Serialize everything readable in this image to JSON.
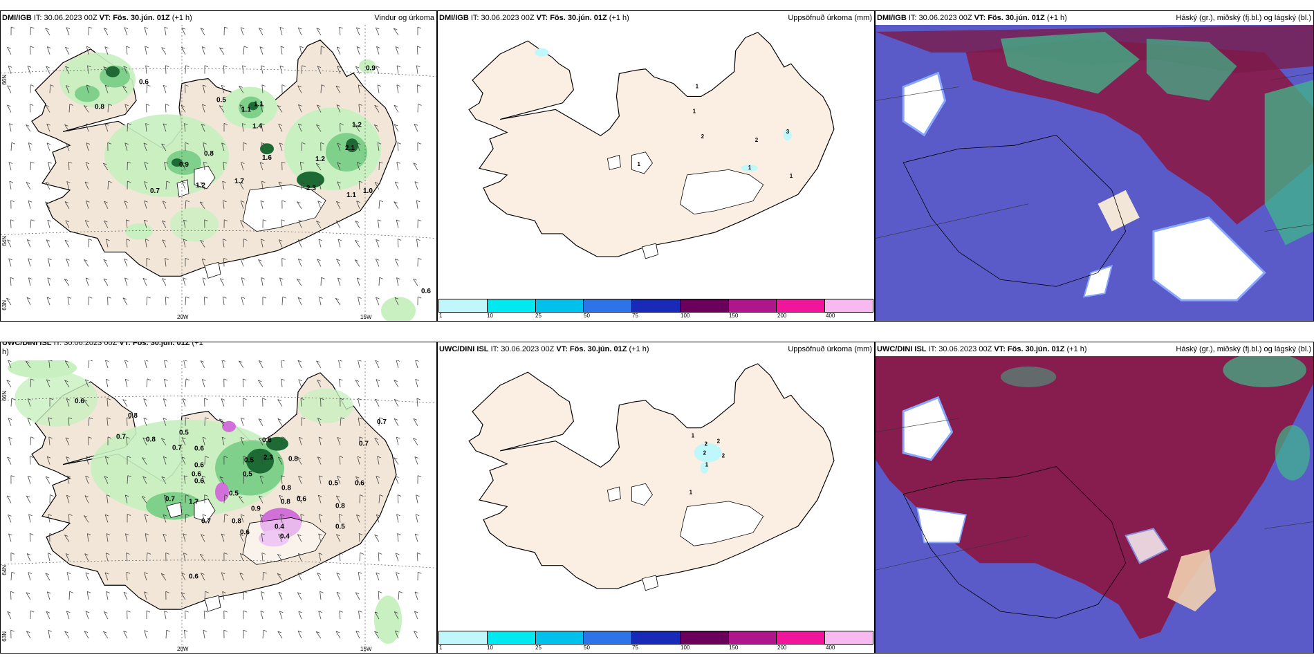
{
  "panels": {
    "p1": {
      "source": "DMI/IGB",
      "it": "IT: 30.06.2023 00Z",
      "vt": "VT: Fös. 30.jún. 01Z",
      "lead": "(+1 h)",
      "right": "Vindur og úrkoma"
    },
    "p2": {
      "source": "DMI/IGB",
      "it": "IT: 30.06.2023 00Z",
      "vt": "VT: Fös. 30.jún. 01Z",
      "lead": "(+1 h)",
      "right": "Uppsöfnuð úrkoma (mm)"
    },
    "p3": {
      "source": "DMI/IGB",
      "it": "IT: 30.06.2023 00Z",
      "vt": "VT: Fös. 30.jún. 01Z",
      "lead": "(+1 h)",
      "right": "Háský (gr.), miðský (fj.bl.) og lágský (bl.)"
    },
    "p4": {
      "source": "UWC/DINI ISL",
      "it": "IT: 30.06.2023 00Z",
      "vt": "VT: Fös. 30.jún. 01Z",
      "lead": "(+1",
      "lead2": "h)",
      "right": ""
    },
    "p5": {
      "source": "UWC/DINI ISL",
      "it": "IT: 30.06.2023 00Z",
      "vt": "VT: Fös. 30.jún. 01Z",
      "lead": "(+1 h)",
      "right": "Uppsöfnuð úrkoma (mm)"
    },
    "p6": {
      "source": "UWC/DINI ISL",
      "it": "IT: 30.06.2023 00Z",
      "vt": "VT: Fös. 30.jún. 01Z",
      "lead": "(+1 h)",
      "right": "Háský (gr.), miðský (fj.bl.) og lágský (bl.)"
    }
  },
  "axis_labels": {
    "lat66": "66N",
    "lat64": "64N",
    "lat63": "63N",
    "lon20": "20W",
    "lon15": "15W"
  },
  "colorbar": {
    "ticks": [
      "1",
      "10",
      "25",
      "50",
      "75",
      "100",
      "150",
      "200",
      "400"
    ],
    "colors": [
      "#bff7fb",
      "#00e8f0",
      "#00c0ec",
      "#2c74e8",
      "#1a2ab8",
      "#6a005c",
      "#b0168c",
      "#f0169c",
      "#f8b8f0"
    ]
  },
  "colors": {
    "land": "#f2e6d8",
    "precip_light": "#c8f0c0",
    "precip_mid": "#7fd08a",
    "precip_dark": "#1e6a34",
    "snow_purple": "#d070d8",
    "cloud_sky": "#5a5ac8",
    "cloud_high": "#8a1a48",
    "cloud_mid": "#3fb88a"
  },
  "p1_values": [
    "0.6",
    "0.8",
    "0.5",
    "1.1",
    "1.1",
    "1.4",
    "0.8",
    "0.9",
    "1.6",
    "1.2",
    "2.1",
    "1.2",
    "0.7",
    "1.7",
    "1.2",
    "2.3",
    "1.1",
    "1.0",
    "0.9",
    "0.6"
  ],
  "p4_values": [
    "0.6",
    "0.8",
    "0.7",
    "0.8",
    "0.5",
    "0.7",
    "0.6",
    "0.6",
    "0.6",
    "0.7",
    "0.5",
    "0.6",
    "0.5",
    "2.3",
    "0.8",
    "0.6",
    "0.7",
    "0.5",
    "1.7",
    "0.8",
    "0.7",
    "0.5",
    "0.8",
    "0.6",
    "0.9",
    "0.6",
    "0.4",
    "0.4",
    "0.6",
    "0.8",
    "0.5",
    "0.8",
    "0.7",
    "0.6"
  ],
  "p2_values": [
    "1",
    "1",
    "2",
    "2",
    "3",
    "1",
    "1",
    "1"
  ],
  "p5_values": [
    "1",
    "2",
    "2",
    "2",
    "2",
    "1",
    "1"
  ]
}
